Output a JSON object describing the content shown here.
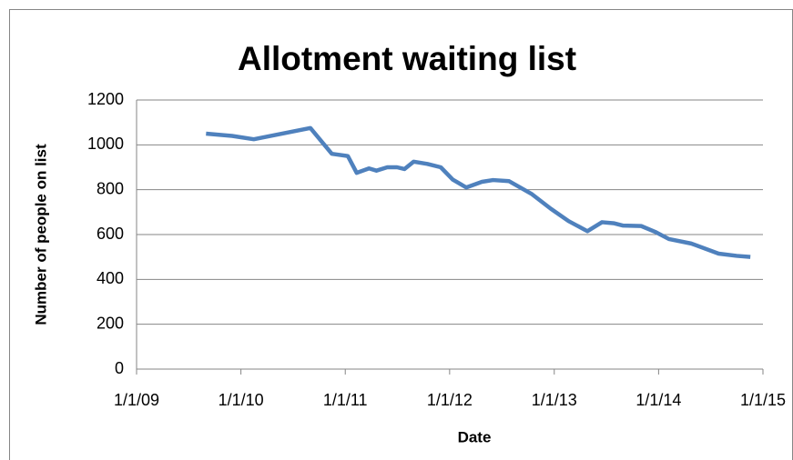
{
  "chart_data": {
    "type": "line",
    "title": "Allotment waiting list",
    "x_label": "Date",
    "y_label": "Number of people on list",
    "x": [
      "2009-09-01",
      "2009-12-01",
      "2010-02-15",
      "2010-09-01",
      "2010-11-15",
      "2011-01-10",
      "2011-02-10",
      "2011-03-25",
      "2011-04-20",
      "2011-05-28",
      "2011-07-01",
      "2011-07-27",
      "2011-08-28",
      "2011-10-15",
      "2011-12-01",
      "2012-01-12",
      "2012-02-28",
      "2012-04-23",
      "2012-06-01",
      "2012-07-27",
      "2012-10-15",
      "2012-12-20",
      "2013-02-20",
      "2013-04-27",
      "2013-06-17",
      "2013-07-30",
      "2013-08-30",
      "2013-11-01",
      "2013-12-20",
      "2014-02-06",
      "2014-04-25",
      "2014-07-30",
      "2014-10-01",
      "2014-11-18"
    ],
    "values": [
      1050,
      1040,
      1025,
      1075,
      960,
      950,
      875,
      895,
      885,
      900,
      900,
      892,
      925,
      915,
      900,
      845,
      810,
      835,
      843,
      838,
      780,
      715,
      660,
      615,
      655,
      650,
      640,
      638,
      612,
      580,
      560,
      515,
      505,
      500
    ],
    "color": "#4f81bd",
    "xlim": [
      "2009-01-01",
      "2015-01-01"
    ],
    "xticks": [
      {
        "value": "2009-01-01",
        "label": "1/1/09"
      },
      {
        "value": "2010-01-01",
        "label": "1/1/10"
      },
      {
        "value": "2011-01-01",
        "label": "1/1/11"
      },
      {
        "value": "2012-01-01",
        "label": "1/1/12"
      },
      {
        "value": "2013-01-01",
        "label": "1/1/13"
      },
      {
        "value": "2014-01-01",
        "label": "1/1/14"
      },
      {
        "value": "2015-01-01",
        "label": "1/1/15"
      }
    ],
    "ylim": [
      0,
      1200
    ],
    "yticks": [
      0,
      200,
      400,
      600,
      800,
      1000,
      1200
    ],
    "grid": true
  }
}
